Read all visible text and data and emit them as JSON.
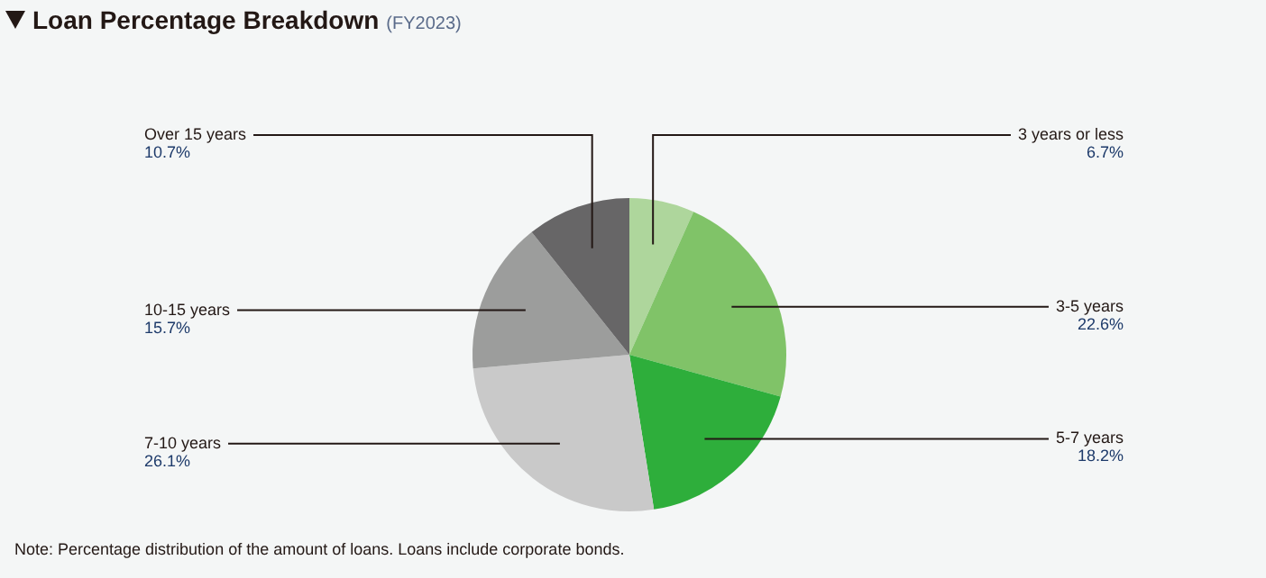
{
  "chart_data": {
    "type": "pie",
    "title": "Loan Percentage Breakdown",
    "subtitle": "(FY2023)",
    "categories": [
      "3 years or less",
      "3-5 years",
      "5-7 years",
      "7-10 years",
      "10-15 years",
      "Over 15 years"
    ],
    "values": [
      6.7,
      22.6,
      18.2,
      26.1,
      15.7,
      10.7
    ],
    "value_labels": [
      "6.7%",
      "22.6%",
      "18.2%",
      "26.1%",
      "15.7%",
      "10.7%"
    ],
    "colors": [
      "#aed69c",
      "#80c368",
      "#2eae3b",
      "#c9c9c9",
      "#9c9d9c",
      "#676667"
    ],
    "legend": false,
    "annotations": [
      "Note: Percentage distribution of the amount of loans. Loans include corporate bonds."
    ]
  }
}
